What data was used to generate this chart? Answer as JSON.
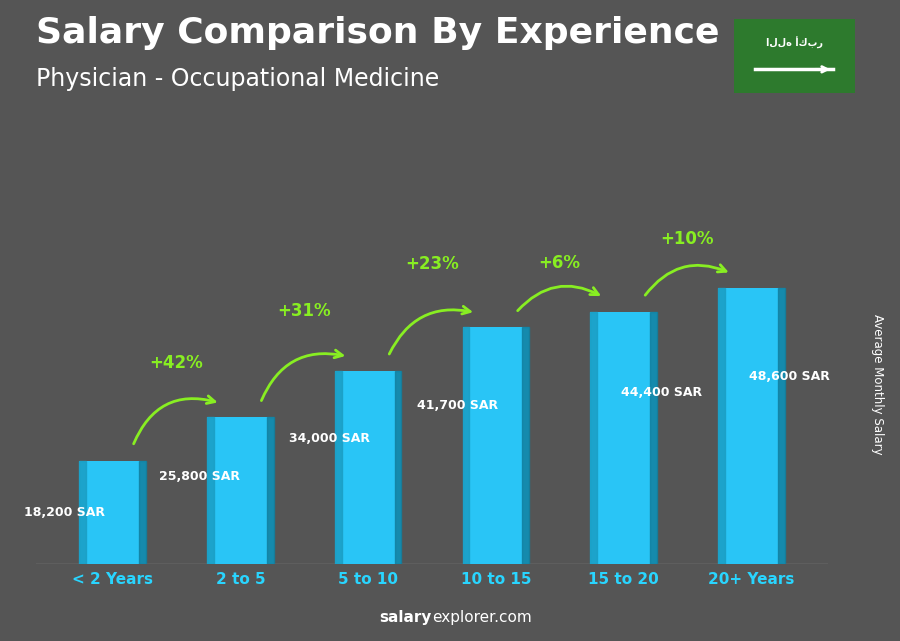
{
  "title": "Salary Comparison By Experience",
  "subtitle": "Physician - Occupational Medicine",
  "categories": [
    "< 2 Years",
    "2 to 5",
    "5 to 10",
    "10 to 15",
    "15 to 20",
    "20+ Years"
  ],
  "values": [
    18200,
    25800,
    34000,
    41700,
    44400,
    48600
  ],
  "salary_labels": [
    "18,200 SAR",
    "25,800 SAR",
    "34,000 SAR",
    "41,700 SAR",
    "44,400 SAR",
    "48,600 SAR"
  ],
  "pct_labels": [
    "+42%",
    "+31%",
    "+23%",
    "+6%",
    "+10%"
  ],
  "bar_color_face": "#29c5f6",
  "bar_color_left": "#1a9ec4",
  "bar_color_right": "#1280a0",
  "bg_color": "#555555",
  "text_color_white": "#ffffff",
  "text_color_cyan": "#29d5ff",
  "text_color_green": "#88ee22",
  "title_fontsize": 26,
  "subtitle_fontsize": 17,
  "ylabel": "Average Monthly Salary",
  "footer_bold": "salary",
  "footer_normal": "explorer.com",
  "ylim_max": 62000,
  "bar_width": 0.52
}
